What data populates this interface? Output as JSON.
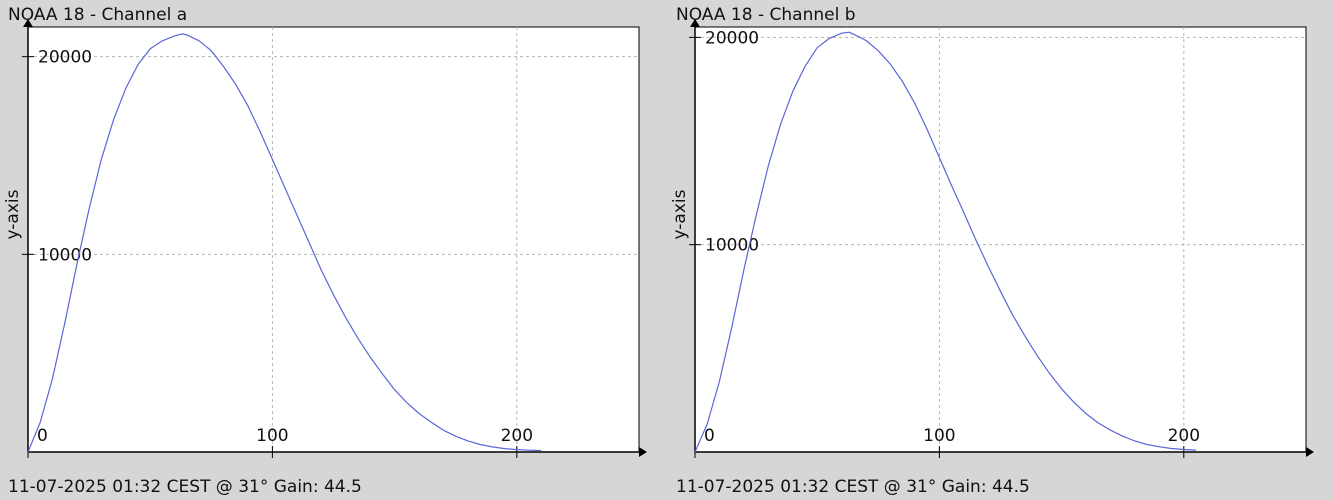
{
  "colors": {
    "background": "#d6d6d6",
    "plot_background": "#ffffff",
    "line": "#5b66d8",
    "grid": "#b8b8b8",
    "axis": "#000000",
    "text": "#111111"
  },
  "chart_data": [
    {
      "type": "line",
      "title": "NOAA 18 - Channel a",
      "ylabel": "y-axis",
      "xlabel": "",
      "xlim": [
        0,
        250
      ],
      "ylim": [
        0,
        21500
      ],
      "x_ticks": [
        0,
        100,
        200
      ],
      "y_ticks": [
        10000,
        20000
      ],
      "x_tick_labels": [
        "0",
        "100",
        "200"
      ],
      "y_tick_labels": [
        "10000",
        "20000"
      ],
      "grid": true,
      "footer": "11-07-2025 01:32 CEST @ 31° Gain: 44.5",
      "series": [
        {
          "values": [
            [
              0,
              0
            ],
            [
              5,
              1500
            ],
            [
              10,
              3700
            ],
            [
              15,
              6500
            ],
            [
              20,
              9500
            ],
            [
              25,
              12300
            ],
            [
              30,
              14800
            ],
            [
              35,
              16800
            ],
            [
              40,
              18400
            ],
            [
              45,
              19600
            ],
            [
              50,
              20400
            ],
            [
              55,
              20800
            ],
            [
              60,
              21050
            ],
            [
              63,
              21150
            ],
            [
              65,
              21100
            ],
            [
              70,
              20800
            ],
            [
              75,
              20300
            ],
            [
              80,
              19500
            ],
            [
              85,
              18600
            ],
            [
              90,
              17500
            ],
            [
              95,
              16200
            ],
            [
              100,
              14800
            ],
            [
              105,
              13400
            ],
            [
              110,
              12000
            ],
            [
              115,
              10600
            ],
            [
              120,
              9200
            ],
            [
              125,
              7950
            ],
            [
              130,
              6800
            ],
            [
              135,
              5750
            ],
            [
              140,
              4800
            ],
            [
              145,
              3950
            ],
            [
              150,
              3150
            ],
            [
              155,
              2500
            ],
            [
              160,
              1950
            ],
            [
              165,
              1500
            ],
            [
              170,
              1100
            ],
            [
              175,
              800
            ],
            [
              180,
              560
            ],
            [
              185,
              380
            ],
            [
              190,
              260
            ],
            [
              195,
              170
            ],
            [
              200,
              120
            ],
            [
              205,
              90
            ],
            [
              210,
              70
            ]
          ]
        }
      ]
    },
    {
      "type": "line",
      "title": "NOAA 18 - Channel b",
      "ylabel": "y-axis",
      "xlabel": "",
      "xlim": [
        0,
        250
      ],
      "ylim": [
        0,
        20500
      ],
      "x_ticks": [
        0,
        100,
        200
      ],
      "y_ticks": [
        10000,
        20000
      ],
      "x_tick_labels": [
        "0",
        "100",
        "200"
      ],
      "y_tick_labels": [
        "10000",
        "20000"
      ],
      "grid": true,
      "footer": "11-07-2025 01:32 CEST @ 31° Gain: 44.5",
      "series": [
        {
          "values": [
            [
              0,
              0
            ],
            [
              5,
              1350
            ],
            [
              10,
              3400
            ],
            [
              15,
              6000
            ],
            [
              20,
              8800
            ],
            [
              25,
              11400
            ],
            [
              30,
              13800
            ],
            [
              35,
              15800
            ],
            [
              40,
              17400
            ],
            [
              45,
              18600
            ],
            [
              50,
              19500
            ],
            [
              55,
              19950
            ],
            [
              60,
              20200
            ],
            [
              63,
              20250
            ],
            [
              65,
              20150
            ],
            [
              70,
              19850
            ],
            [
              75,
              19350
            ],
            [
              80,
              18700
            ],
            [
              85,
              17850
            ],
            [
              90,
              16800
            ],
            [
              95,
              15550
            ],
            [
              100,
              14200
            ],
            [
              105,
              12850
            ],
            [
              110,
              11550
            ],
            [
              115,
              10200
            ],
            [
              120,
              8950
            ],
            [
              125,
              7750
            ],
            [
              130,
              6600
            ],
            [
              135,
              5600
            ],
            [
              140,
              4650
            ],
            [
              145,
              3800
            ],
            [
              150,
              3050
            ],
            [
              155,
              2400
            ],
            [
              160,
              1850
            ],
            [
              165,
              1400
            ],
            [
              170,
              1050
            ],
            [
              175,
              760
            ],
            [
              180,
              530
            ],
            [
              185,
              360
            ],
            [
              190,
              250
            ],
            [
              195,
              170
            ],
            [
              200,
              120
            ],
            [
              205,
              90
            ]
          ]
        }
      ]
    }
  ]
}
